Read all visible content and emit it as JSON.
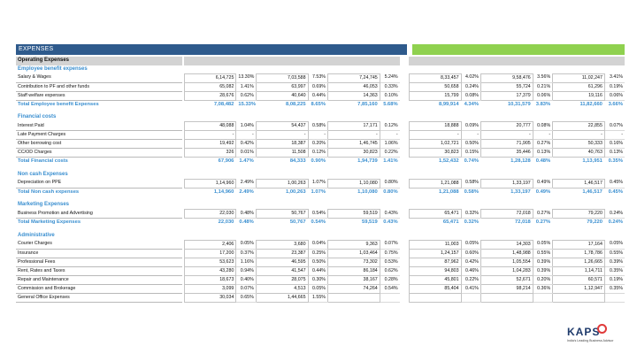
{
  "banner": {
    "title": "EXPENSES"
  },
  "operating_header": "Operating Expenses",
  "sections": [
    {
      "title": "Employee benefit expenses",
      "rows": [
        [
          "Salary & Wages",
          "6,14,725",
          "13.30%",
          "7,03,588",
          "7.53%",
          "7,24,745",
          "5.24%",
          "8,33,457",
          "4.02%",
          "9,58,476",
          "3.56%",
          "11,02,247",
          "3.41%"
        ],
        [
          "Contribution to PF and other funds",
          "65,082",
          "1.41%",
          "63,997",
          "0.69%",
          "46,053",
          "0.33%",
          "50,658",
          "0.24%",
          "55,724",
          "0.21%",
          "61,296",
          "0.19%"
        ],
        [
          "Staff welfare expenses",
          "28,676",
          "0.62%",
          "40,640",
          "0.44%",
          "14,363",
          "0.10%",
          "15,799",
          "0.08%",
          "17,379",
          "0.06%",
          "19,116",
          "0.06%"
        ]
      ],
      "total": [
        "Total Employee benefit Expenses",
        "7,08,482",
        "15.33%",
        "8,08,225",
        "8.65%",
        "7,85,160",
        "5.68%",
        "8,99,914",
        "4.34%",
        "10,31,579",
        "3.83%",
        "11,82,660",
        "3.66%"
      ]
    },
    {
      "title": "Financial costs",
      "rows": [
        [
          "Interest Paid",
          "48,088",
          "1.04%",
          "54,437",
          "0.58%",
          "17,171",
          "0.12%",
          "18,888",
          "0.09%",
          "20,777",
          "0.08%",
          "22,855",
          "0.07%"
        ],
        [
          "Late Payment Charges",
          "-",
          "-",
          "-",
          "-",
          "-",
          "-",
          "-",
          "-",
          "-",
          "-",
          "-",
          "-"
        ],
        [
          "Other borrowing cost",
          "19,492",
          "0.42%",
          "18,387",
          "0.20%",
          "1,46,745",
          "1.06%",
          "1,02,721",
          "0.50%",
          "71,905",
          "0.27%",
          "50,333",
          "0.16%"
        ],
        [
          "CC/OD Charges",
          "326",
          "0.01%",
          "11,508",
          "0.12%",
          "30,823",
          "0.22%",
          "30,823",
          "0.15%",
          "35,446",
          "0.13%",
          "40,763",
          "0.13%"
        ]
      ],
      "total": [
        "Total Financial costs",
        "67,906",
        "1.47%",
        "84,333",
        "0.90%",
        "1,94,739",
        "1.41%",
        "1,52,432",
        "0.74%",
        "1,28,128",
        "0.48%",
        "1,13,951",
        "0.35%"
      ]
    },
    {
      "title": "Non cash Expenses",
      "rows": [
        [
          "Depreciation on PPE",
          "1,14,960",
          "2.49%",
          "1,00,263",
          "1.07%",
          "1,10,080",
          "0.80%",
          "1,21,088",
          "0.58%",
          "1,33,197",
          "0.49%",
          "1,46,517",
          "0.45%"
        ]
      ],
      "total": [
        "Total Non cash expenses",
        "1,14,960",
        "2.49%",
        "1,00,263",
        "1.07%",
        "1,10,080",
        "0.80%",
        "1,21,088",
        "0.58%",
        "1,33,197",
        "0.49%",
        "1,46,517",
        "0.45%"
      ]
    },
    {
      "title": "Marketing Expenses",
      "rows": [
        [
          "Business Promotion and Advertising",
          "22,030",
          "0.48%",
          "50,767",
          "0.54%",
          "59,519",
          "0.43%",
          "65,471",
          "0.32%",
          "72,018",
          "0.27%",
          "79,220",
          "0.24%"
        ]
      ],
      "total": [
        "Total Marketing Expenses",
        "22,030",
        "0.48%",
        "50,767",
        "0.54%",
        "59,519",
        "0.43%",
        "65,471",
        "0.32%",
        "72,018",
        "0.27%",
        "79,220",
        "0.24%"
      ]
    },
    {
      "title": "Administrative",
      "rows": [
        [
          "Courier Charges",
          "2,406",
          "0.05%",
          "3,680",
          "0.04%",
          "9,363",
          "0.07%",
          "11,003",
          "0.05%",
          "14,303",
          "0.05%",
          "17,164",
          "0.05%"
        ],
        [
          "Insurance",
          "17,200",
          "0.37%",
          "23,387",
          "0.25%",
          "1,03,464",
          "0.75%",
          "1,24,157",
          "0.60%",
          "1,48,988",
          "0.55%",
          "1,78,786",
          "0.55%"
        ],
        [
          "Professional Fees",
          "53,623",
          "1.16%",
          "46,595",
          "0.50%",
          "73,302",
          "0.53%",
          "87,962",
          "0.42%",
          "1,05,554",
          "0.39%",
          "1,26,665",
          "0.39%"
        ],
        [
          "Rent, Rates and Taxes",
          "43,280",
          "0.94%",
          "41,547",
          "0.44%",
          "86,184",
          "0.62%",
          "94,803",
          "0.46%",
          "1,04,283",
          "0.39%",
          "1,14,711",
          "0.35%"
        ],
        [
          "Repair and Maintenance",
          "18,673",
          "0.40%",
          "28,075",
          "0.30%",
          "38,167",
          "0.28%",
          "45,801",
          "0.22%",
          "52,671",
          "0.20%",
          "60,571",
          "0.19%"
        ],
        [
          "Commission and Brokerage",
          "3,099",
          "0.07%",
          "4,513",
          "0.05%",
          "74,264",
          "0.54%",
          "85,404",
          "0.41%",
          "98,214",
          "0.36%",
          "1,12,947",
          "0.35%"
        ],
        [
          "General Office Expenses",
          "30,034",
          "0.65%",
          "1,44,665",
          "1.55%",
          "",
          "",
          "",
          "",
          "",
          "",
          "",
          ""
        ]
      ]
    }
  ],
  "logo": {
    "brand_k": "K",
    "brand_rest": "PS",
    "brand_after": "O",
    "tagline": "India's Leading Business Advisor"
  }
}
